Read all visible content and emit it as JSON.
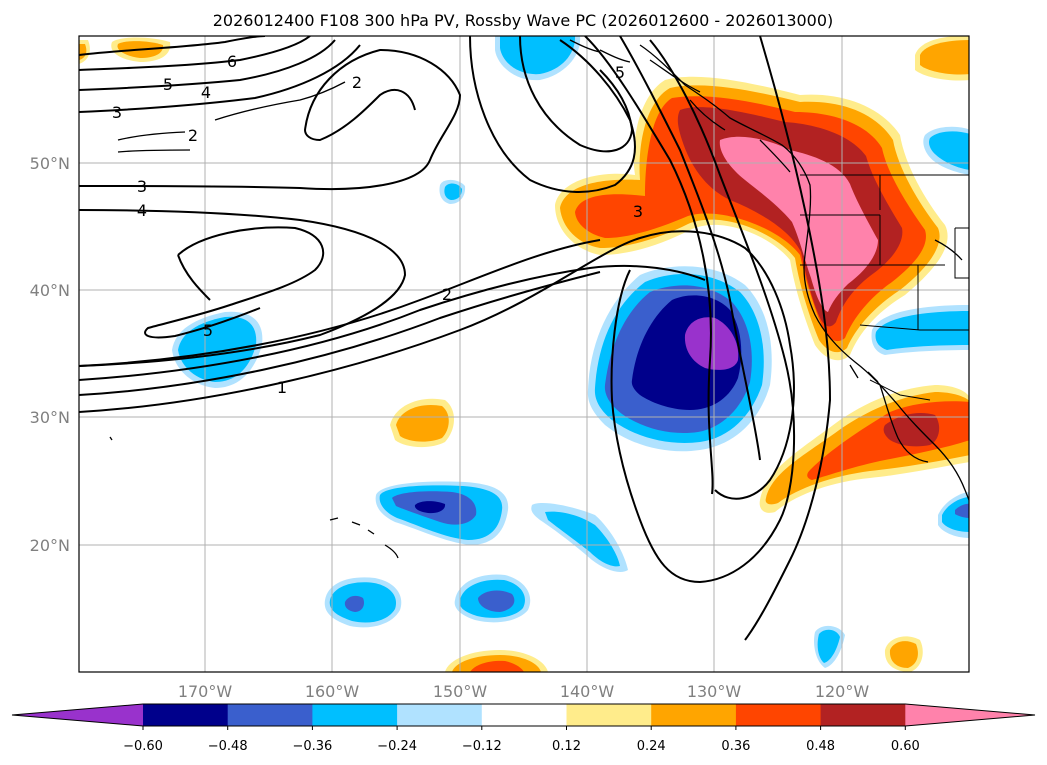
{
  "title": "2026012400 F108 300 hPa PV, Rossby Wave PC (2026012600 - 2026013000)",
  "axes": {
    "lat_labels": [
      "50°N",
      "40°N",
      "30°N",
      "20°N"
    ],
    "lon_labels": [
      "170°W",
      "160°W",
      "150°W",
      "140°W",
      "130°W",
      "120°W"
    ]
  },
  "colorbar": {
    "labels": [
      "−0.60",
      "−0.48",
      "−0.36",
      "−0.24",
      "−0.12",
      "0.12",
      "0.24",
      "0.36",
      "0.48",
      "0.60"
    ],
    "colors": [
      "#9932CC",
      "#00008B",
      "#3A5FCD",
      "#00BFFF",
      "#B0E2FF",
      "#FFFFFF",
      "#FFEC8B",
      "#FFA500",
      "#FF4500",
      "#B22222",
      "#FF82AB"
    ],
    "extend": "both"
  },
  "contour_labels": [
    {
      "id": "c6",
      "text": "6"
    },
    {
      "id": "c5a",
      "text": "5"
    },
    {
      "id": "c4a",
      "text": "4"
    },
    {
      "id": "c3a",
      "text": "3"
    },
    {
      "id": "c2a",
      "text": "2"
    },
    {
      "id": "c2b",
      "text": "2"
    },
    {
      "id": "c3b",
      "text": "3"
    },
    {
      "id": "c4b",
      "text": "4"
    },
    {
      "id": "c5b",
      "text": "5"
    },
    {
      "id": "c5c",
      "text": "5"
    },
    {
      "id": "c3c",
      "text": "3"
    },
    {
      "id": "c2c",
      "text": "2"
    },
    {
      "id": "c1",
      "text": "1"
    }
  ]
}
